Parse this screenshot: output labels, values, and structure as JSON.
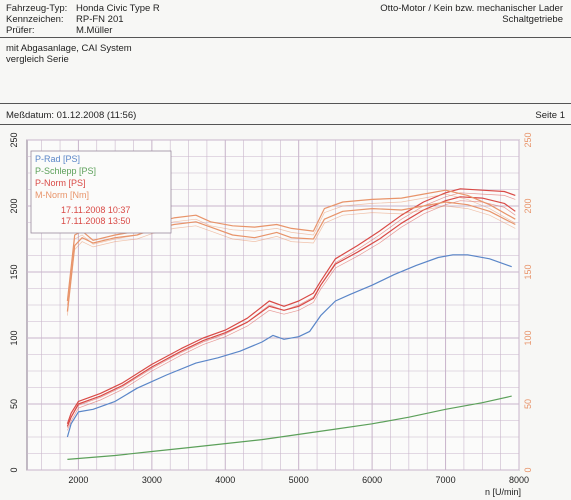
{
  "header": {
    "left_rows": [
      {
        "label": "Fahrzeug-Typ:",
        "value": "Honda Civic Type R"
      },
      {
        "label": "Kennzeichen:",
        "value": "RP-FN 201"
      },
      {
        "label": "Prüfer:",
        "value": "M.Müller"
      }
    ],
    "right_line1": "Otto-Motor / Kein bzw. mechanischer Lader",
    "right_line2": "Schaltgetriebe"
  },
  "notes": {
    "line1": "mit Abgasanlage, CAI System",
    "line2": "vergleich Serie"
  },
  "meta": {
    "date": "Meßdatum: 01.12.2008 (11:56)",
    "page": "Seite 1"
  },
  "colors": {
    "p_rad": "#5a86c8",
    "p_schlepp": "#5ca05a",
    "p_norm": "#d94a46",
    "m_norm": "#e8946a",
    "grid": "#c9b6cc"
  },
  "chart_data": {
    "type": "line",
    "xlabel": "n [U/min]",
    "x_ticks": [
      2000,
      3000,
      4000,
      5000,
      6000,
      7000,
      8000
    ],
    "xlim": [
      1300,
      8000
    ],
    "y_left_ticks": [
      0,
      50,
      100,
      150,
      200,
      250
    ],
    "y_right_ticks": [
      0,
      50,
      100,
      150,
      200,
      250
    ],
    "ylim": [
      0,
      250
    ],
    "grid": true,
    "legend_position": "top-left",
    "legend": [
      "P-Rad [PS]",
      "P-Schlepp [PS]",
      "P-Norm [PS]",
      "M-Norm [Nm]"
    ],
    "runs": [
      "17.11.2008 10:37",
      "17.11.2008 13:50"
    ],
    "series": [
      {
        "name": "P-Rad [PS]",
        "run": "17.11.2008 10:37",
        "x": [
          1850,
          1900,
          2000,
          2200,
          2500,
          2800,
          3200,
          3600,
          3900,
          4200,
          4500,
          4650,
          4800,
          5000,
          5150,
          5300,
          5500,
          5700,
          6000,
          6300,
          6600,
          6900,
          7100,
          7300,
          7600,
          7900
        ],
        "y": [
          25,
          35,
          44,
          46,
          52,
          62,
          72,
          81,
          85,
          90,
          97,
          102,
          99,
          101,
          105,
          117,
          128,
          133,
          140,
          148,
          155,
          161,
          163,
          163,
          160,
          154
        ]
      },
      {
        "name": "P-Schlepp [PS]",
        "run": "17.11.2008 10:37",
        "x": [
          1850,
          2500,
          3000,
          3500,
          4000,
          4500,
          5000,
          5500,
          6000,
          6500,
          7000,
          7500,
          7900
        ],
        "y": [
          8,
          11,
          14,
          17,
          20,
          23,
          27,
          31,
          35,
          40,
          46,
          51,
          56
        ]
      },
      {
        "name": "P-Norm [PS]",
        "run": "17.11.2008 10:37",
        "x": [
          1850,
          1900,
          2000,
          2300,
          2600,
          3000,
          3400,
          3700,
          4000,
          4300,
          4600,
          4800,
          5000,
          5200,
          5300,
          5500,
          5800,
          6100,
          6400,
          6700,
          7000,
          7200,
          7500,
          7800,
          7950
        ],
        "y": [
          33,
          40,
          50,
          56,
          64,
          78,
          90,
          98,
          104,
          112,
          124,
          121,
          124,
          130,
          140,
          156,
          165,
          175,
          187,
          197,
          204,
          207,
          206,
          202,
          196
        ]
      },
      {
        "name": "P-Norm [PS]",
        "run": "17.11.2008 13:50",
        "x": [
          1850,
          1900,
          2000,
          2300,
          2600,
          3000,
          3400,
          3700,
          4000,
          4300,
          4600,
          4800,
          5000,
          5200,
          5300,
          5500,
          5800,
          6100,
          6400,
          6700,
          7000,
          7200,
          7500,
          7800,
          7950
        ],
        "y": [
          35,
          43,
          52,
          58,
          66,
          80,
          92,
          100,
          106,
          115,
          128,
          124,
          128,
          134,
          143,
          160,
          170,
          181,
          193,
          203,
          210,
          213,
          212,
          211,
          208
        ]
      },
      {
        "name": "M-Norm [Nm]",
        "run": "17.11.2008 10:37",
        "x": [
          1850,
          1950,
          2050,
          2200,
          2500,
          2800,
          3000,
          3300,
          3600,
          3800,
          4100,
          4400,
          4700,
          4900,
          5200,
          5350,
          5600,
          6000,
          6400,
          6700,
          7000,
          7300,
          7600,
          7950
        ],
        "y": [
          120,
          170,
          176,
          172,
          176,
          178,
          182,
          186,
          188,
          184,
          178,
          176,
          180,
          176,
          175,
          190,
          196,
          198,
          197,
          200,
          203,
          201,
          196,
          186
        ]
      },
      {
        "name": "M-Norm [Nm]",
        "run": "17.11.2008 13:50",
        "x": [
          1850,
          1950,
          2050,
          2200,
          2500,
          2800,
          3000,
          3300,
          3600,
          3800,
          4100,
          4400,
          4700,
          4900,
          5200,
          5350,
          5600,
          6000,
          6400,
          6700,
          7000,
          7300,
          7600,
          7950
        ],
        "y": [
          128,
          178,
          181,
          174,
          178,
          181,
          187,
          191,
          193,
          188,
          185,
          184,
          186,
          183,
          181,
          198,
          203,
          205,
          206,
          209,
          212,
          208,
          201,
          190
        ]
      }
    ]
  }
}
